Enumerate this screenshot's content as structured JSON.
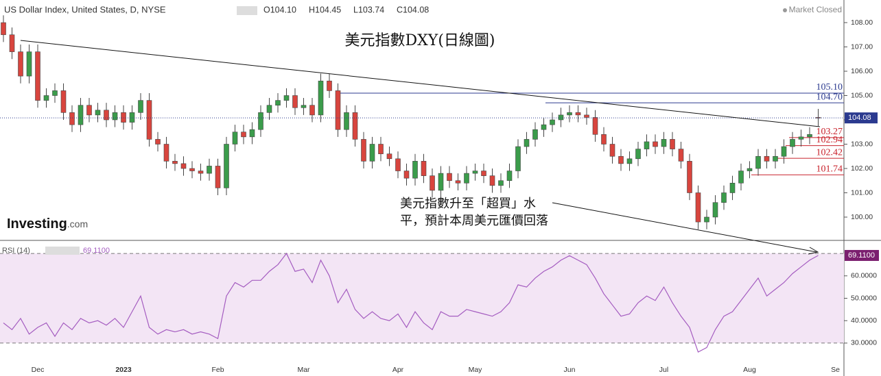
{
  "header": {
    "symbol": "US Dollar Index, United States, D, NYSE",
    "ohlc": [
      "O104.10",
      "H104.45",
      "L103.74",
      "C104.08"
    ],
    "status": "Market Closed",
    "logo": [
      "Investing",
      ".com"
    ]
  },
  "chart_data": [
    {
      "type": "candlestick",
      "title": "美元指數DXY(日線圖)",
      "annotation": [
        "美元指數升至「超買」水",
        "平，預計本周美元匯價回落"
      ],
      "up_color": "#3b9c4b",
      "down_color": "#d8453e",
      "open": [
        108.0,
        107.5,
        106.8,
        105.8,
        106.8,
        104.8,
        105.0,
        105.2,
        104.3,
        103.8,
        104.6,
        104.2,
        104.4,
        104.0,
        104.3,
        103.9,
        104.3,
        104.8,
        103.2,
        103.0,
        102.3,
        102.2,
        102.0,
        101.9,
        101.8,
        102.1,
        101.2,
        103.0,
        103.5,
        103.3,
        103.6,
        104.3,
        104.6,
        104.8,
        105.0,
        104.5,
        104.6,
        104.2,
        105.6,
        105.2,
        103.6,
        104.3,
        103.2,
        102.3,
        103.0,
        102.6,
        102.4,
        101.9,
        101.6,
        102.3,
        101.7,
        101.1,
        101.8,
        101.5,
        101.4,
        101.8,
        101.9,
        101.7,
        101.3,
        101.5,
        101.9,
        102.9,
        103.2,
        103.6,
        103.8,
        104.0,
        104.2,
        104.3,
        104.2,
        104.1,
        103.4,
        103.0,
        102.5,
        102.2,
        102.4,
        102.8,
        103.1,
        102.9,
        103.2,
        102.8,
        102.3,
        101.0,
        99.8,
        100.0,
        100.6,
        101.0,
        101.4,
        101.9,
        102.0,
        102.5,
        102.3,
        102.5,
        102.9,
        103.2,
        103.3,
        104.1,
        null,
        null
      ],
      "high": [
        108.3,
        107.8,
        107.1,
        107.1,
        107.1,
        105.3,
        105.5,
        105.5,
        104.6,
        104.9,
        104.9,
        104.7,
        104.7,
        104.6,
        104.6,
        104.6,
        105.1,
        105.1,
        103.5,
        103.3,
        102.6,
        102.5,
        102.3,
        102.2,
        102.4,
        102.4,
        103.3,
        103.8,
        103.8,
        103.9,
        104.6,
        104.9,
        105.1,
        105.3,
        105.3,
        104.9,
        104.9,
        105.9,
        105.9,
        105.5,
        104.6,
        104.6,
        103.5,
        103.3,
        103.3,
        102.9,
        102.7,
        102.2,
        102.6,
        102.6,
        102.0,
        102.1,
        102.1,
        101.8,
        102.1,
        102.2,
        102.2,
        102.0,
        101.8,
        102.2,
        103.2,
        103.5,
        103.9,
        104.1,
        104.3,
        104.5,
        104.6,
        104.6,
        104.5,
        104.4,
        103.7,
        103.3,
        102.8,
        102.7,
        103.1,
        103.4,
        103.4,
        103.5,
        103.5,
        103.1,
        102.6,
        101.3,
        100.3,
        100.9,
        101.3,
        101.7,
        102.2,
        102.3,
        102.8,
        102.8,
        102.8,
        103.2,
        103.5,
        103.6,
        103.7,
        104.45,
        null,
        null
      ],
      "low": [
        107.2,
        106.5,
        105.5,
        105.5,
        104.5,
        104.5,
        104.7,
        104.0,
        103.5,
        103.5,
        103.9,
        103.9,
        103.7,
        103.7,
        103.6,
        103.6,
        104.0,
        102.9,
        102.7,
        102.0,
        101.9,
        101.7,
        101.6,
        101.5,
        101.5,
        100.9,
        100.9,
        102.7,
        103.0,
        103.0,
        103.3,
        104.0,
        104.3,
        104.5,
        104.2,
        104.2,
        103.9,
        103.9,
        104.9,
        103.3,
        103.3,
        102.9,
        102.0,
        102.0,
        102.3,
        102.1,
        101.6,
        101.3,
        101.3,
        101.4,
        100.8,
        100.8,
        101.2,
        101.1,
        101.1,
        101.5,
        101.4,
        101.0,
        101.0,
        101.2,
        101.6,
        102.6,
        102.9,
        103.3,
        103.5,
        103.7,
        103.9,
        103.9,
        103.8,
        103.1,
        102.7,
        102.2,
        101.9,
        101.9,
        102.1,
        102.5,
        102.6,
        102.6,
        102.5,
        102.0,
        100.7,
        99.5,
        99.5,
        99.7,
        100.3,
        100.7,
        101.1,
        101.6,
        101.7,
        102.0,
        102.0,
        102.2,
        102.6,
        102.9,
        103.0,
        103.74,
        null,
        null
      ],
      "close": [
        107.5,
        106.8,
        105.8,
        106.8,
        104.8,
        105.0,
        105.2,
        104.3,
        103.8,
        104.6,
        104.2,
        104.4,
        104.0,
        104.3,
        103.9,
        104.3,
        104.8,
        103.2,
        103.0,
        102.3,
        102.2,
        102.0,
        101.9,
        101.8,
        102.1,
        101.2,
        103.0,
        103.5,
        103.3,
        103.6,
        104.3,
        104.6,
        104.8,
        105.0,
        104.5,
        104.6,
        104.2,
        105.6,
        105.2,
        103.6,
        104.3,
        103.2,
        102.3,
        103.0,
        102.6,
        102.4,
        101.9,
        101.6,
        102.3,
        101.7,
        101.1,
        101.8,
        101.5,
        101.4,
        101.8,
        101.9,
        101.7,
        101.3,
        101.5,
        101.9,
        102.9,
        103.2,
        103.6,
        103.8,
        104.0,
        104.2,
        104.3,
        104.2,
        104.1,
        103.4,
        103.0,
        102.5,
        102.2,
        102.4,
        102.8,
        103.1,
        102.9,
        103.2,
        102.8,
        102.3,
        101.0,
        99.8,
        100.0,
        100.6,
        101.0,
        101.4,
        101.9,
        102.0,
        102.5,
        102.3,
        102.5,
        102.9,
        103.2,
        103.3,
        103.4,
        104.08,
        null,
        null
      ],
      "levels": [
        {
          "value": 105.1,
          "label": "105.10",
          "color": "#2b3a8f"
        },
        {
          "value": 104.7,
          "label": "104.70",
          "color": "#2b3a8f"
        },
        {
          "value": 103.27,
          "color": "#c8202a"
        },
        {
          "value": 102.94,
          "color": "#c8202a"
        },
        {
          "value": 102.42,
          "color": "#c8202a"
        },
        {
          "value": 101.74,
          "color": "#c8202a"
        }
      ],
      "ylim": [
        99.07,
        108.93
      ],
      "yticks": [
        {
          "value": 100,
          "label": "100.00"
        },
        {
          "value": 101,
          "label": "101.00"
        },
        {
          "value": 102,
          "label": "102.00"
        },
        {
          "value": 103,
          "label": "103.00"
        },
        {
          "value": 104,
          "label": "104.00"
        },
        {
          "value": 105,
          "label": "105.00"
        },
        {
          "value": 106,
          "label": "106.00"
        },
        {
          "value": 107,
          "label": "107.00"
        },
        {
          "value": 108,
          "label": "108.00"
        }
      ]
    },
    {
      "type": "line",
      "name": "RSI (14)",
      "color": "#a45cc0",
      "band_color": "#f3e5f5",
      "categories": [
        null,
        null,
        null,
        null,
        "Dec",
        null,
        null,
        null,
        null,
        null,
        null,
        null,
        null,
        null,
        "2023",
        null,
        null,
        null,
        null,
        null,
        null,
        null,
        null,
        null,
        null,
        "Feb",
        null,
        null,
        null,
        null,
        null,
        null,
        null,
        null,
        null,
        "Mar",
        null,
        null,
        null,
        null,
        null,
        null,
        null,
        null,
        null,
        null,
        "Apr",
        null,
        null,
        null,
        null,
        null,
        null,
        null,
        null,
        "May",
        null,
        null,
        null,
        null,
        null,
        null,
        null,
        null,
        null,
        null,
        "Jun",
        null,
        null,
        null,
        null,
        null,
        null,
        null,
        null,
        null,
        null,
        "Jul",
        null,
        null,
        null,
        null,
        null,
        null,
        null,
        null,
        null,
        "Aug",
        null,
        null,
        null,
        null,
        null,
        null,
        null,
        null,
        null,
        "Se"
      ],
      "values": [
        39,
        36,
        41,
        34,
        37,
        39,
        33,
        39,
        36,
        41,
        39,
        40,
        38,
        41,
        37,
        44,
        51,
        37,
        34,
        36,
        35,
        36,
        34,
        35,
        34,
        32,
        51,
        57,
        55,
        58,
        58,
        62,
        65,
        70,
        62,
        63,
        57,
        67,
        60,
        48,
        54,
        45,
        41,
        44,
        41,
        40,
        43,
        37,
        44,
        39,
        36,
        44,
        42,
        42,
        45,
        44,
        43,
        42,
        44,
        48,
        56,
        55,
        59,
        62,
        64,
        67,
        69,
        67,
        65,
        59,
        52,
        47,
        42,
        43,
        48,
        51,
        49,
        55,
        48,
        42,
        37,
        26,
        28,
        36,
        42,
        44,
        49,
        54,
        59,
        51,
        54,
        57,
        61,
        64,
        67,
        69.11,
        null,
        null
      ],
      "last_label": "69.1100",
      "overbought": 70,
      "oversold": 30,
      "ylim": [
        15.3,
        74.3
      ],
      "yticks": [
        {
          "value": 30,
          "label": "30.0000"
        },
        {
          "value": 40,
          "label": "40.0000"
        },
        {
          "value": 50,
          "label": "50.0000"
        },
        {
          "value": 60,
          "label": "60.0000"
        }
      ]
    }
  ]
}
